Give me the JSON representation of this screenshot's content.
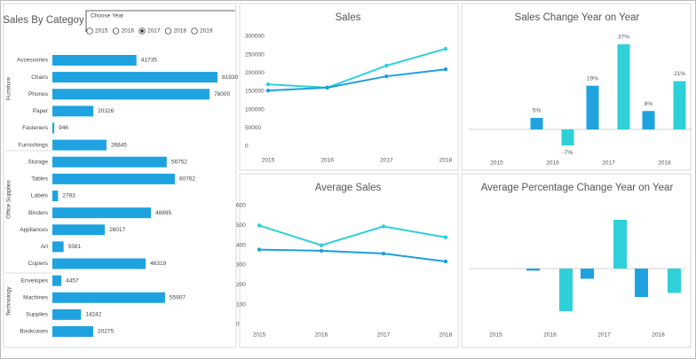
{
  "chart_data": [
    {
      "type": "hbar",
      "title": "Sales By Categoy",
      "color": "#1fa3e0",
      "categories": [
        "Accessories",
        "Chairs",
        "Phones",
        "Paper",
        "Fasteners",
        "Furnishings",
        "Storage",
        "Tables",
        "Labels",
        "Binders",
        "Appliances",
        "Art",
        "Copiers",
        "Envelopes",
        "Machines",
        "Supplies",
        "Bookcases"
      ],
      "values": [
        41735,
        81930,
        78000,
        20326,
        946,
        26845,
        56752,
        60762,
        2793,
        48895,
        26017,
        5581,
        46319,
        4457,
        55907,
        14242,
        20275
      ],
      "groups": [
        "Furniture",
        "Office Supplies",
        "Technology"
      ]
    },
    {
      "type": "line",
      "title": "Sales",
      "categories": [
        "2015",
        "2016",
        "2017",
        "2018"
      ],
      "series": [
        {
          "color": "#2fd0d8",
          "values": [
            169000,
            160000,
            220000,
            266000
          ]
        },
        {
          "color": "#1f9fdc",
          "values": [
            152000,
            160000,
            191000,
            210000
          ]
        }
      ],
      "ylim": [
        0,
        300000
      ],
      "yticks": [
        0,
        50000,
        100000,
        150000,
        200000,
        250000,
        300000
      ]
    },
    {
      "type": "bar",
      "title": "Sales Change Year on Year",
      "categories": [
        "2015",
        "2016",
        "2017",
        "2018"
      ],
      "series": [
        {
          "color": "#1fa3e0",
          "values": [
            null,
            5,
            19,
            8
          ],
          "value_labels": [
            null,
            "5%",
            "19%",
            "8%"
          ]
        },
        {
          "color": "#2fd0d8",
          "values": [
            null,
            -7,
            37,
            21
          ],
          "value_labels": [
            null,
            "-7%",
            "37%",
            "21%"
          ]
        }
      ]
    },
    {
      "type": "line",
      "title": "Average Sales",
      "categories": [
        "2015",
        "2016",
        "2017",
        "2018"
      ],
      "series": [
        {
          "color": "#2fd0d8",
          "values": [
            500,
            400,
            495,
            440
          ]
        },
        {
          "color": "#1f9fdc",
          "values": [
            378,
            372,
            358,
            318
          ]
        }
      ],
      "ylim": [
        0,
        600
      ],
      "yticks": [
        0,
        100,
        200,
        300,
        400,
        500,
        600
      ]
    },
    {
      "type": "bar",
      "title": "Average Percentage Change Year on Year",
      "categories": [
        "2015",
        "2016",
        "2017",
        "2018"
      ],
      "series": [
        {
          "color": "#1fa3e0",
          "values": [
            null,
            -1,
            -5,
            -14
          ]
        },
        {
          "color": "#2fd0d8",
          "values": [
            null,
            -21,
            24,
            -12
          ]
        }
      ]
    }
  ],
  "year_selector": {
    "label": "Choose Year",
    "options": [
      "2015",
      "2016",
      "2017",
      "2018",
      "2019"
    ],
    "selected": "2017"
  }
}
